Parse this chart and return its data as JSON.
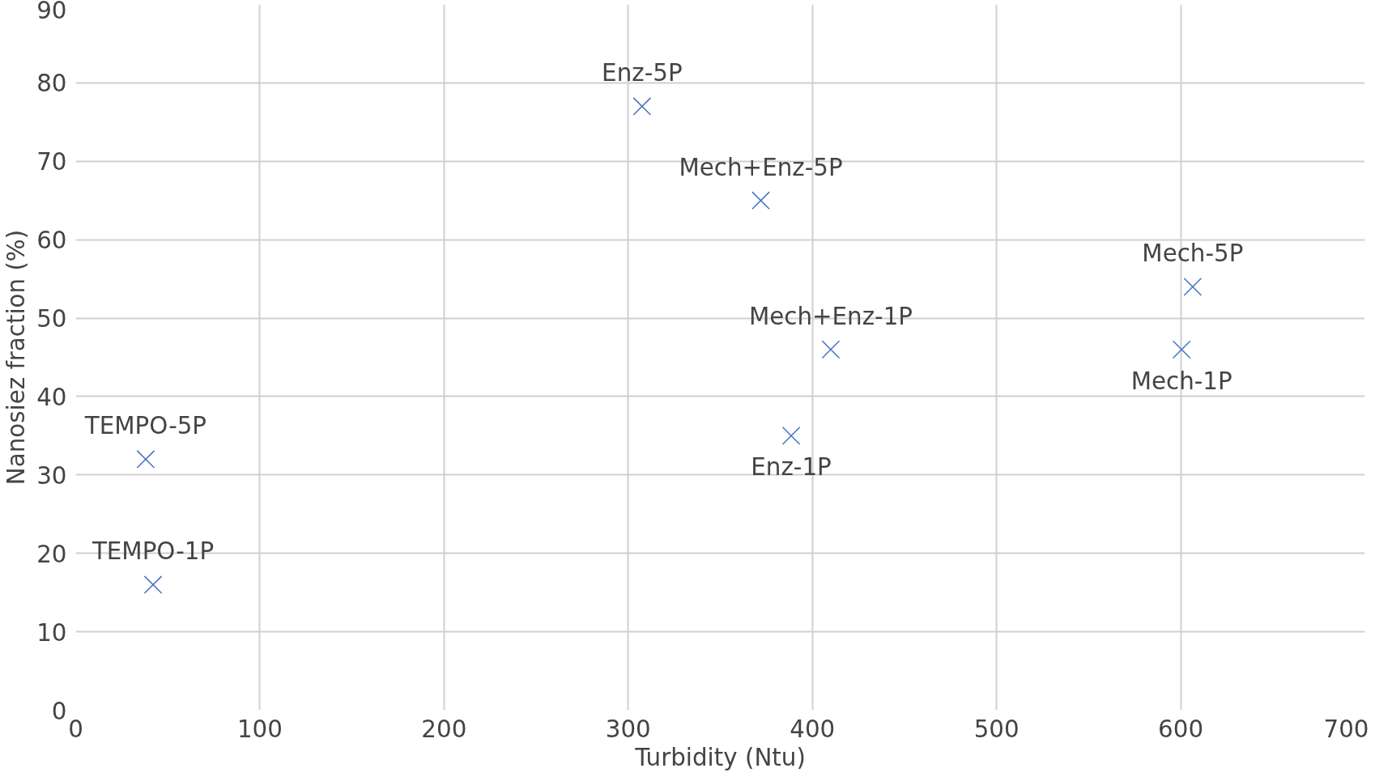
{
  "chart_data": {
    "type": "scatter",
    "xlabel": "Turbidity (Ntu)",
    "ylabel": "Nanosiez fraction (%)",
    "x": [
      38,
      42,
      307.5,
      372,
      410,
      388.5,
      606.5,
      600.5
    ],
    "series": [
      {
        "color": "#4472c4",
        "values": [
          32,
          16,
          77,
          65,
          46,
          35,
          54,
          46
        ]
      }
    ],
    "annotations": [
      {
        "text": "TEMPO-5P",
        "x": 38,
        "y": 32
      },
      {
        "text": "TEMPO-1P",
        "x": 42,
        "y": 16
      },
      {
        "text": "Enz-5P",
        "x": 307.5,
        "y": 77
      },
      {
        "text": "Mech+Enz-5P",
        "x": 372,
        "y": 65
      },
      {
        "text": "Mech+Enz-1P",
        "x": 410,
        "y": 46
      },
      {
        "text": "Enz-1P",
        "x": 388.5,
        "y": 35
      },
      {
        "text": "Mech-5P",
        "x": 606.5,
        "y": 54
      },
      {
        "text": "Mech-1P",
        "x": 600.5,
        "y": 46
      }
    ],
    "xlim": [
      0,
      700
    ],
    "xticks": [
      0,
      100,
      200,
      300,
      400,
      500,
      600,
      700
    ],
    "ylim": [
      0,
      90
    ],
    "yticks": [
      0,
      10,
      20,
      30,
      40,
      50,
      60,
      70,
      80,
      90
    ],
    "grid": true,
    "marker": "cross"
  }
}
